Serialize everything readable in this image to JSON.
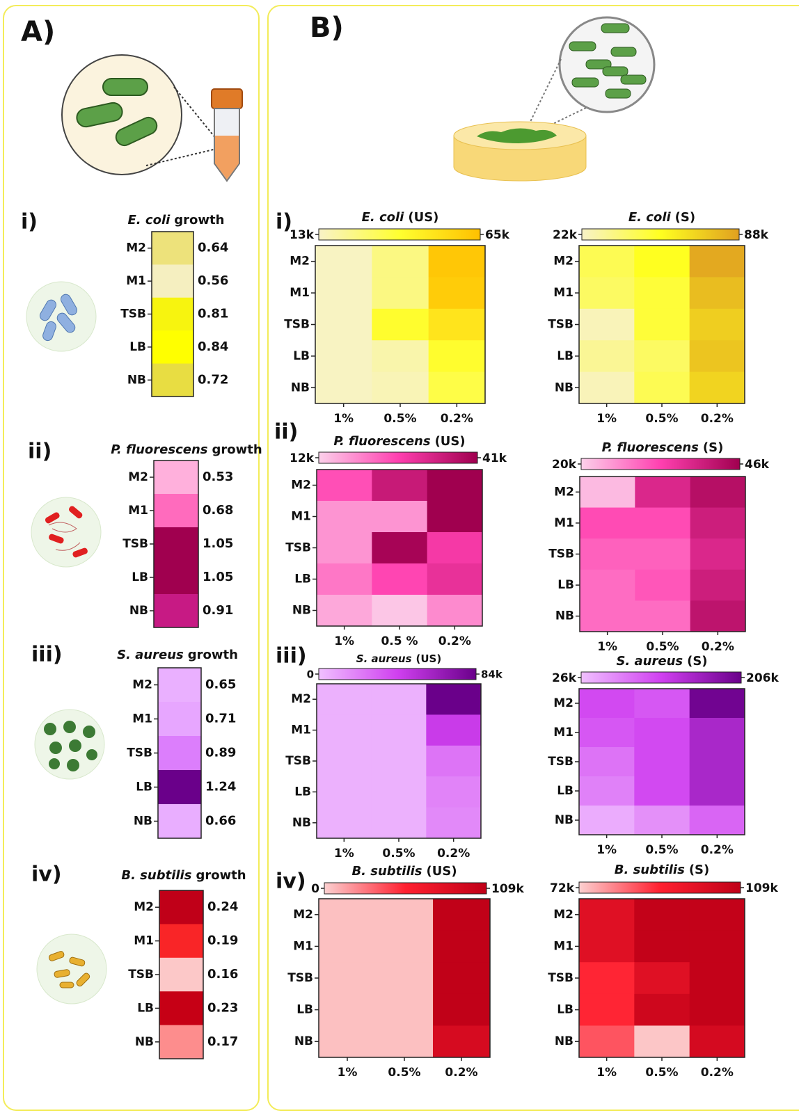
{
  "panel_a_label": "A)",
  "panel_b_label": "B)",
  "chart_data": [
    {
      "type": "heatmap",
      "label": "i)",
      "organism": "E. coli",
      "suffix": "growth",
      "rows": [
        "M2",
        "M1",
        "TSB",
        "LB",
        "NB"
      ],
      "values": [
        0.64,
        0.56,
        0.81,
        0.84,
        0.72
      ],
      "colors": [
        "#f5efc0",
        "#ece070",
        "#e6dc30",
        "#ffff00"
      ]
    },
    {
      "type": "heatmap",
      "label": "ii)",
      "organism": "P. fluorescens",
      "suffix": "growth",
      "rows": [
        "M2",
        "M1",
        "TSB",
        "LB",
        "NB"
      ],
      "values": [
        0.53,
        0.68,
        1.05,
        1.05,
        0.91
      ],
      "colors": [
        "#ffb0dc",
        "#ff60b8",
        "#d02090",
        "#a0004f"
      ]
    },
    {
      "type": "heatmap",
      "label": "iii)",
      "organism": "S. aureus",
      "suffix": "growth",
      "rows": [
        "M2",
        "M1",
        "TSB",
        "LB",
        "NB"
      ],
      "values": [
        0.65,
        0.71,
        0.89,
        1.24,
        0.66
      ],
      "colors": [
        "#eab0ff",
        "#e090ff",
        "#d040f0",
        "#6a008a"
      ]
    },
    {
      "type": "heatmap",
      "label": "iv)",
      "organism": "B. subtilis",
      "suffix": "growth",
      "rows": [
        "M2",
        "M1",
        "TSB",
        "LB",
        "NB"
      ],
      "values": [
        0.24,
        0.19,
        0.16,
        0.23,
        0.17
      ],
      "colors": [
        "#fcc8c8",
        "#ff2a2a",
        "#d00010",
        "#c00018"
      ]
    },
    {
      "type": "heatmap",
      "label": "i)",
      "organism": "E. coli",
      "suffix": "(US)",
      "rows": [
        "M2",
        "M1",
        "TSB",
        "LB",
        "NB"
      ],
      "columns": [
        "1%",
        "0.5%",
        "0.2%"
      ],
      "values": [
        [
          14000,
          25000,
          62000
        ],
        [
          14000,
          25000,
          60000
        ],
        [
          14000,
          40000,
          50000
        ],
        [
          14000,
          18000,
          40000
        ],
        [
          14000,
          16000,
          35000
        ]
      ],
      "clim": [
        13000,
        65000
      ],
      "cticks": [
        {
          "value": 13000,
          "label": "13k"
        },
        {
          "value": 65000,
          "label": "65k"
        }
      ],
      "colors": [
        "#f8f2c8",
        "#ffff30",
        "#ffc000"
      ]
    },
    {
      "type": "heatmap",
      "organism": "E. coli",
      "suffix": "(S)",
      "rows": [
        "M2",
        "M1",
        "TSB",
        "LB",
        "NB"
      ],
      "columns": [
        "1%",
        "0.5%",
        "0.2%"
      ],
      "values": [
        [
          45000,
          55000,
          85000
        ],
        [
          42000,
          50000,
          78000
        ],
        [
          25000,
          50000,
          72000
        ],
        [
          32000,
          42000,
          75000
        ],
        [
          25000,
          45000,
          70000
        ]
      ],
      "clim": [
        22000,
        88000
      ],
      "cticks": [
        {
          "value": 22000,
          "label": "22k"
        },
        {
          "value": 88000,
          "label": "88k"
        }
      ],
      "colors": [
        "#f8f2c8",
        "#ffff20",
        "#e0a020"
      ]
    },
    {
      "type": "heatmap",
      "label": "ii)",
      "organism": "P. fluorescens",
      "suffix": "(US)",
      "rows": [
        "M2",
        "M1",
        "TSB",
        "LB",
        "NB"
      ],
      "columns": [
        "1%",
        "0.5 %",
        "0.2%"
      ],
      "values": [
        [
          25000,
          35000,
          41000
        ],
        [
          18000,
          18000,
          41000
        ],
        [
          18000,
          40000,
          28000
        ],
        [
          21000,
          26000,
          30000
        ],
        [
          16000,
          13000,
          19000
        ]
      ],
      "clim": [
        12000,
        41000
      ],
      "cticks": [
        {
          "value": 12000,
          "label": "12k"
        },
        {
          "value": 41000,
          "label": "41k"
        }
      ],
      "colors": [
        "#fcd0ea",
        "#ff40b0",
        "#a0004f"
      ]
    },
    {
      "type": "heatmap",
      "organism": "P. fluorescens",
      "suffix": "(S)",
      "rows": [
        "M2",
        "M1",
        "TSB",
        "LB",
        "NB"
      ],
      "columns": [
        "1%",
        "0.5%",
        "0.2%"
      ],
      "values": [
        [
          22000,
          38000,
          43000
        ],
        [
          32000,
          32000,
          40000
        ],
        [
          30000,
          30000,
          38000
        ],
        [
          29000,
          31000,
          40000
        ],
        [
          29000,
          29000,
          42000
        ]
      ],
      "clim": [
        20000,
        46000
      ],
      "cticks": [
        {
          "value": 20000,
          "label": "20k"
        },
        {
          "value": 46000,
          "label": "46k"
        }
      ],
      "colors": [
        "#fcd0ea",
        "#ff40b0",
        "#a0004f"
      ]
    },
    {
      "type": "heatmap",
      "label": "iii)",
      "organism": "S. aureus",
      "suffix": "(US)",
      "rows": [
        "M2",
        "M1",
        "TSB",
        "LB",
        "NB"
      ],
      "columns": [
        "1%",
        "0.5%",
        "0.2%"
      ],
      "values": [
        [
          5000,
          5000,
          84000
        ],
        [
          5000,
          5000,
          45000
        ],
        [
          5000,
          5000,
          25000
        ],
        [
          5000,
          5000,
          20000
        ],
        [
          5000,
          5000,
          18000
        ]
      ],
      "clim": [
        0,
        84000
      ],
      "cticks": [
        0,
        {
          "value": 84000,
          "label": "84k"
        }
      ],
      "colors": [
        "#f0c0ff",
        "#d040f0",
        "#6a008a"
      ]
    },
    {
      "type": "heatmap",
      "organism": "S. aureus",
      "suffix": "(S)",
      "rows": [
        "M2",
        "M1",
        "TSB",
        "LB",
        "NB"
      ],
      "columns": [
        "1%",
        "0.5%",
        "0.2%"
      ],
      "values": [
        [
          110000,
          100000,
          200000
        ],
        [
          100000,
          110000,
          150000
        ],
        [
          80000,
          110000,
          150000
        ],
        [
          70000,
          110000,
          150000
        ],
        [
          40000,
          60000,
          90000
        ]
      ],
      "clim": [
        26000,
        206000
      ],
      "cticks": [
        {
          "value": 26000,
          "label": "26k"
        },
        {
          "value": 206000,
          "label": "206k"
        }
      ],
      "colors": [
        "#f0c0ff",
        "#d040f0",
        "#6a008a"
      ]
    },
    {
      "type": "heatmap",
      "label": "iv)",
      "organism": "B. subtilis",
      "suffix": "(US)",
      "rows": [
        "M2",
        "M1",
        "TSB",
        "LB",
        "NB"
      ],
      "columns": [
        "1%",
        "0.5%",
        "0.2%"
      ],
      "values": [
        [
          5000,
          5000,
          108000
        ],
        [
          5000,
          5000,
          108000
        ],
        [
          5000,
          5000,
          108000
        ],
        [
          5000,
          5000,
          108000
        ],
        [
          5000,
          5000,
          90000
        ]
      ],
      "clim": [
        0,
        109000
      ],
      "cticks": [
        0,
        {
          "value": 109000,
          "label": "109k"
        }
      ],
      "colors": [
        "#fcd0d0",
        "#ff2030",
        "#c00018"
      ]
    },
    {
      "type": "heatmap",
      "organism": "B. subtilis",
      "suffix": "(S)",
      "rows": [
        "M2",
        "M1",
        "TSB",
        "LB",
        "NB"
      ],
      "columns": [
        "1%",
        "0.5%",
        "0.2%"
      ],
      "values": [
        [
          100000,
          108000,
          108000
        ],
        [
          100000,
          108000,
          108000
        ],
        [
          90000,
          100000,
          108000
        ],
        [
          90000,
          105000,
          108000
        ],
        [
          85000,
          73000,
          103000
        ]
      ],
      "clim": [
        72000,
        109000
      ],
      "cticks": [
        {
          "value": 72000,
          "label": "72k"
        },
        {
          "value": 109000,
          "label": "109k"
        }
      ],
      "colors": [
        "#fcd0d0",
        "#ff2030",
        "#c00018"
      ]
    }
  ]
}
